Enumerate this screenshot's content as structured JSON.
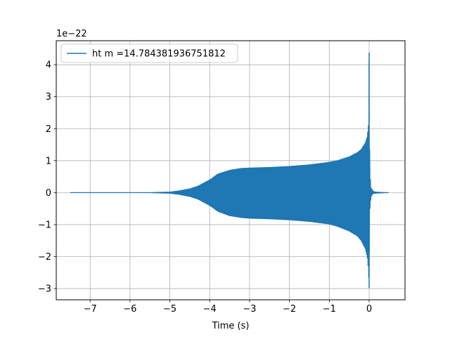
{
  "chart_data": {
    "type": "line",
    "xlabel": "Time (s)",
    "ylabel": "",
    "y_offset_label": "1e−22",
    "xlim": [
      -7.85,
      0.9
    ],
    "ylim": [
      -3.35,
      4.75
    ],
    "xticks": [
      -7,
      -6,
      -5,
      -4,
      -3,
      -2,
      -1,
      0
    ],
    "xtick_labels": [
      "−7",
      "−6",
      "−5",
      "−4",
      "−3",
      "−2",
      "−1",
      "0"
    ],
    "yticks": [
      -3,
      -2,
      -1,
      0,
      1,
      2,
      3,
      4
    ],
    "ytick_labels": [
      "−3",
      "−2",
      "−1",
      "0",
      "1",
      "2",
      "3",
      "4"
    ],
    "grid": true,
    "legend_position": "top-left",
    "color": "#1f77b4",
    "series": [
      {
        "name": "ht m =14.784381936751812",
        "x_range": [
          -7.5,
          0.5
        ],
        "envelope": {
          "t": [
            -7.5,
            -6.0,
            -5.5,
            -5.0,
            -4.8,
            -4.5,
            -4.3,
            -4.0,
            -3.8,
            -3.5,
            -3.2,
            -3.0,
            -2.5,
            -2.0,
            -1.5,
            -1.0,
            -0.8,
            -0.5,
            -0.3,
            -0.2,
            -0.1,
            -0.05,
            -0.02,
            0.0,
            0.005,
            0.02,
            0.05,
            0.1,
            0.15,
            0.3,
            0.5
          ],
          "upper": [
            0,
            0,
            0.003,
            0.02,
            0.05,
            0.12,
            0.2,
            0.4,
            0.58,
            0.7,
            0.76,
            0.77,
            0.79,
            0.82,
            0.87,
            0.95,
            1.0,
            1.12,
            1.25,
            1.35,
            1.55,
            1.75,
            2.1,
            4.38,
            2.9,
            0.6,
            0.15,
            0.05,
            0.02,
            0.01,
            0
          ],
          "lower": [
            0,
            0,
            -0.003,
            -0.02,
            -0.05,
            -0.12,
            -0.2,
            -0.4,
            -0.58,
            -0.72,
            -0.78,
            -0.8,
            -0.82,
            -0.85,
            -0.9,
            -0.98,
            -1.05,
            -1.2,
            -1.35,
            -1.5,
            -1.75,
            -2.0,
            -2.4,
            -2.98,
            -2.0,
            -0.55,
            -0.12,
            -0.03,
            -0.02,
            -0.01,
            0
          ]
        }
      }
    ]
  }
}
